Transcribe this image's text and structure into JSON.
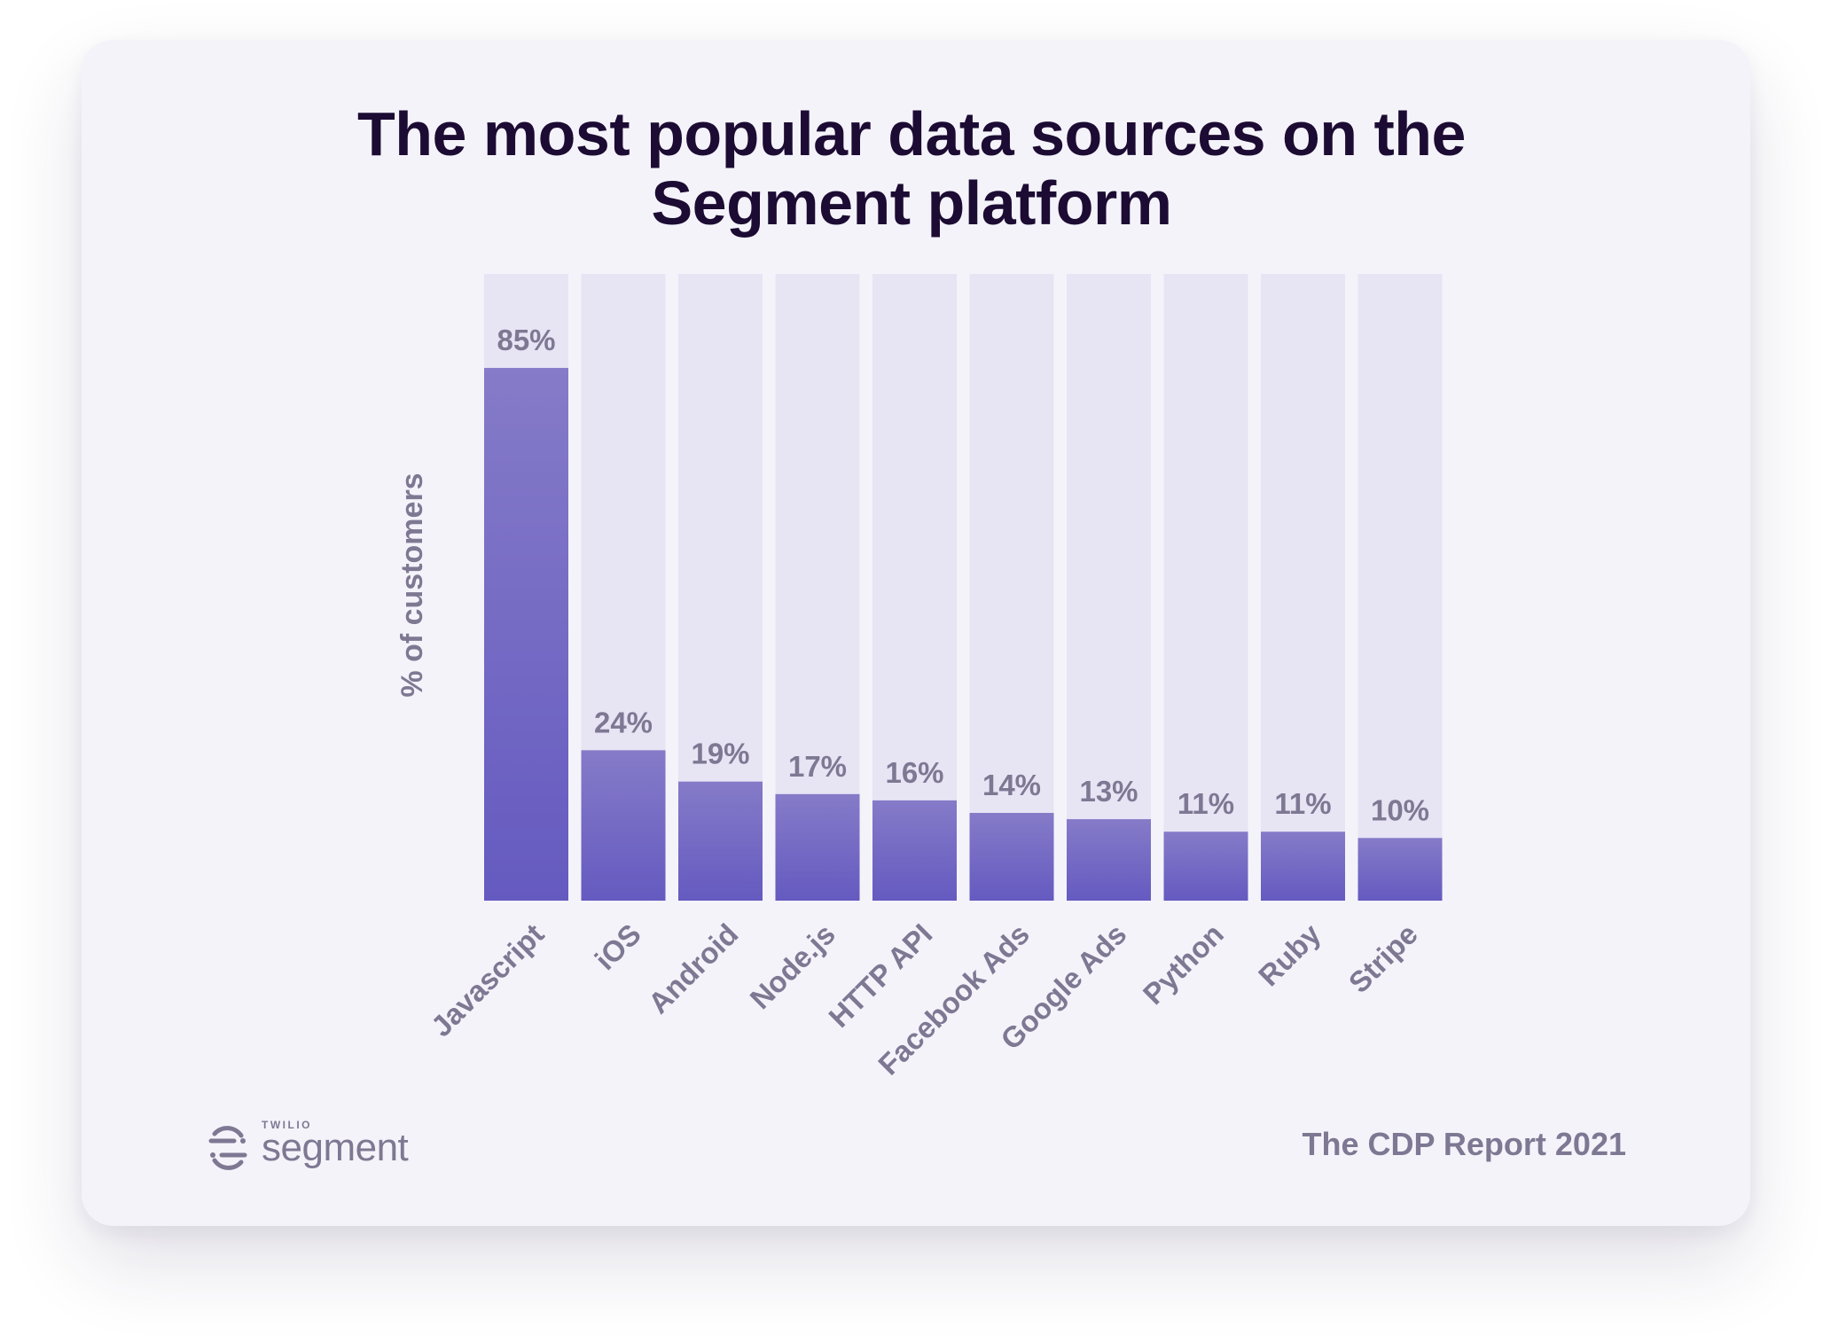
{
  "page": {
    "title_line1": "The most popular data sources on the",
    "title_line2": "Segment platform"
  },
  "chart_data": {
    "type": "bar",
    "title": "The most popular data sources on the Segment platform",
    "xlabel": "",
    "ylabel": "% of customers",
    "ylim": [
      0,
      100
    ],
    "grid": false,
    "legend": "none",
    "categories": [
      "Javascript",
      "iOS",
      "Android",
      "Node.js",
      "HTTP API",
      "Facebook Ads",
      "Google Ads",
      "Python",
      "Ruby",
      "Stripe"
    ],
    "values": [
      85,
      24,
      19,
      17,
      16,
      14,
      13,
      11,
      11,
      10
    ],
    "value_labels": [
      "85%",
      "24%",
      "19%",
      "17%",
      "16%",
      "14%",
      "13%",
      "11%",
      "11%",
      "10%"
    ],
    "colors": {
      "bar_top": "#857bc8",
      "bar_bottom": "#655ac0",
      "track": "#e7e4f4",
      "label": "#7e7893"
    }
  },
  "footer": {
    "brand_small": "TWILIO",
    "brand_name": "segment",
    "report_label": "The CDP Report 2021",
    "logo_icon": "segment-logo-icon"
  }
}
